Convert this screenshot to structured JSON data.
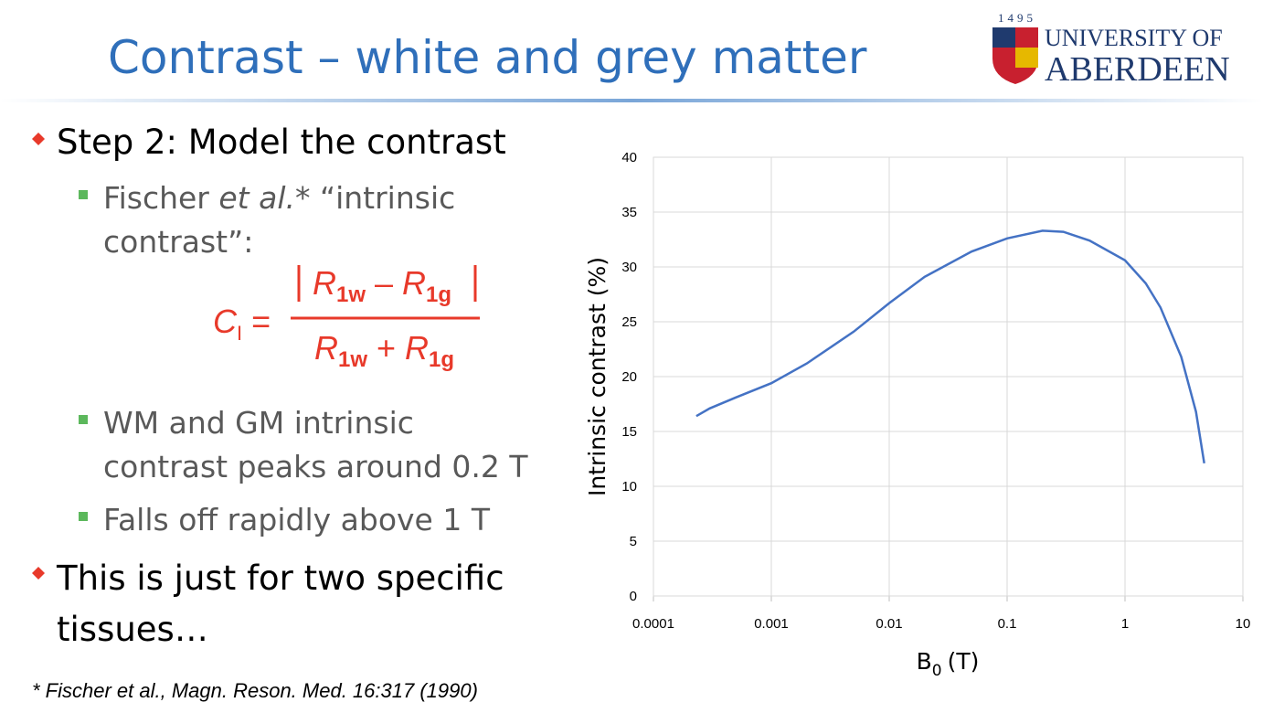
{
  "header": {
    "title": "Contrast – white and grey matter"
  },
  "logo": {
    "year": "1495",
    "line1": "UNIVERSITY OF",
    "line2": "ABERDEEN"
  },
  "bullets": [
    {
      "text": "Step 2: Model the contrast"
    },
    {
      "parts": [
        "Fischer ",
        "et al.",
        "* “intrinsic"
      ],
      "line2": "contrast”:"
    },
    {
      "lines": [
        "WM and GM intrinsic",
        "contrast peaks around 0.2 T"
      ]
    },
    {
      "text": "Falls off rapidly above 1 T"
    },
    {
      "lines": [
        "This is just for two specific",
        "tissues…"
      ]
    }
  ],
  "formula": {
    "lhs": "C",
    "lhs_sub": "I",
    "equals": "=",
    "numerator": [
      "R",
      "1w",
      "–",
      "R",
      "1g"
    ],
    "denominator": [
      "R",
      "1w",
      "+",
      "R",
      "1g"
    ]
  },
  "footnote": "* Fischer et al., Magn. Reson. Med. 16:317 (1990)",
  "chart_data": {
    "type": "line",
    "ylabel": "Intrinsic contrast (%)",
    "xlabel": "B",
    "xlabel_sub": "0",
    "xlabel_suffix": "(T)",
    "x": [
      0.000231,
      0.0003,
      0.0005,
      0.001,
      0.002,
      0.005,
      0.01,
      0.02,
      0.05,
      0.1,
      0.2,
      0.3,
      0.5,
      1,
      1.5,
      2,
      3,
      4,
      4.7
    ],
    "series": [
      {
        "color": "#4472c4",
        "values": [
          16.4,
          17.1,
          18.1,
          19.4,
          21.2,
          24.1,
          26.7,
          29.1,
          31.4,
          32.6,
          33.3,
          33.2,
          32.4,
          30.6,
          28.5,
          26.3,
          21.8,
          16.8,
          12.1
        ]
      }
    ],
    "xscale": "log",
    "xlim": [
      0.0001,
      10
    ],
    "xticks": [
      0.0001,
      0.001,
      0.01,
      0.1,
      1,
      10
    ],
    "ylim": [
      0,
      40
    ],
    "yticks": [
      0,
      5,
      10,
      15,
      20,
      25,
      30,
      35,
      40
    ],
    "grid": true
  }
}
